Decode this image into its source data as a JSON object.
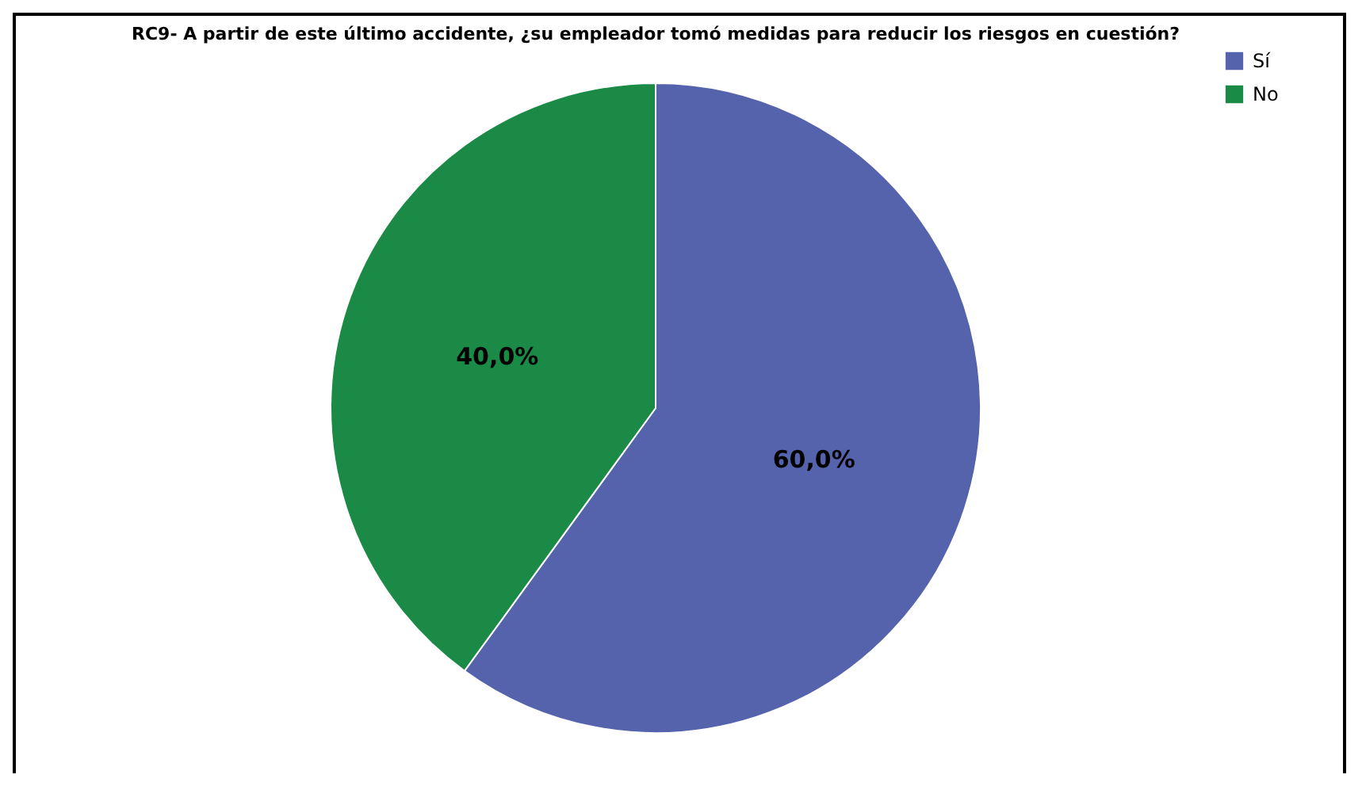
{
  "chart_data": {
    "type": "pie",
    "title": "RC9- A partir de este último accidente, ¿su empleador tomó medidas para reducir los riesgos en cuestión?",
    "categories": [
      "Sí",
      "No"
    ],
    "values": [
      60.0,
      40.0
    ],
    "colors": [
      "#5563ad",
      "#1a8a46"
    ],
    "value_labels": [
      "60,0%",
      "40,0%"
    ],
    "legend": "top right"
  }
}
